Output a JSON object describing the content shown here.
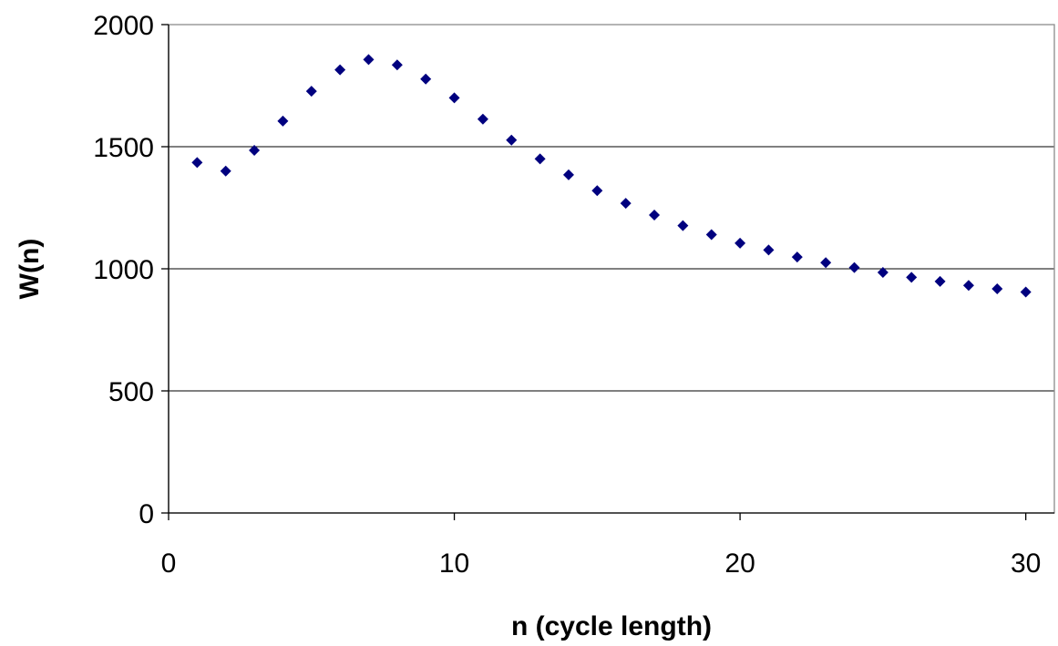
{
  "chart_data": {
    "type": "scatter",
    "title": "",
    "xlabel": "n (cycle length)",
    "ylabel": "W(n)",
    "xlim": [
      0,
      31
    ],
    "ylim": [
      0,
      2000
    ],
    "x_ticks": [
      0,
      10,
      20,
      30
    ],
    "y_ticks": [
      0,
      500,
      1000,
      1500,
      2000
    ],
    "x_tick_labels": [
      "0",
      "10",
      "20",
      "30"
    ],
    "y_tick_labels": [
      "0",
      "500",
      "1000",
      "1500",
      "2000"
    ],
    "grid": "horizontal major gridlines",
    "legend": "none",
    "marker": "diamond",
    "marker_color": "#00007f",
    "series": [
      {
        "x": [
          1,
          2,
          3,
          4,
          5,
          6,
          7,
          8,
          9,
          10,
          11,
          12,
          13,
          14,
          15,
          16,
          17,
          18,
          19,
          20,
          21,
          22,
          23,
          24,
          25,
          26,
          27,
          28,
          29,
          30
        ],
        "y": [
          1435,
          1400,
          1485,
          1605,
          1727,
          1815,
          1857,
          1835,
          1777,
          1700,
          1613,
          1527,
          1450,
          1385,
          1320,
          1268,
          1220,
          1177,
          1140,
          1105,
          1077,
          1048,
          1025,
          1005,
          985,
          965,
          948,
          932,
          918,
          905
        ]
      }
    ]
  }
}
